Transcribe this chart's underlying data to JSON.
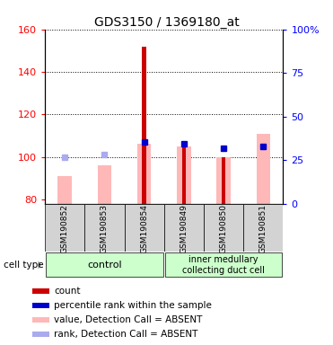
{
  "title": "GDS3150 / 1369180_at",
  "samples": [
    "GSM190852",
    "GSM190853",
    "GSM190854",
    "GSM190849",
    "GSM190850",
    "GSM190851"
  ],
  "ylim_left": [
    78,
    160
  ],
  "ylim_right": [
    0,
    100
  ],
  "yticks_left": [
    80,
    100,
    120,
    140,
    160
  ],
  "yticks_right": [
    0,
    25,
    50,
    75,
    100
  ],
  "ytick_labels_right": [
    "0",
    "25",
    "50",
    "75",
    "100%"
  ],
  "red_bars_values": [
    null,
    null,
    152,
    106,
    100,
    null
  ],
  "pink_bars_values": [
    91,
    96,
    106,
    105,
    100,
    111
  ],
  "blue_values": [
    100,
    101,
    107,
    106,
    104,
    105
  ],
  "absent_flags": [
    true,
    true,
    false,
    false,
    false,
    false
  ],
  "bar_bottom": 78,
  "red_color": "#cc0000",
  "pink_color": "#ffb8b8",
  "blue_color": "#0000cc",
  "absent_blue_color": "#aaaaee",
  "legend_items": [
    {
      "label": "count",
      "color": "#cc0000"
    },
    {
      "label": "percentile rank within the sample",
      "color": "#0000cc"
    },
    {
      "label": "value, Detection Call = ABSENT",
      "color": "#ffb8b8"
    },
    {
      "label": "rank, Detection Call = ABSENT",
      "color": "#aaaaee"
    }
  ],
  "control_label": "control",
  "imcd_label": "inner medullary\ncollecting duct cell",
  "cell_type_label": "cell type",
  "group_color": "#ccffcc",
  "sample_box_color": "#d3d3d3",
  "title_fontsize": 10,
  "tick_fontsize": 8,
  "sample_fontsize": 6.5,
  "legend_fontsize": 7.5,
  "pink_bar_width": 0.35,
  "red_bar_width": 0.1,
  "blue_marker_size": 5
}
